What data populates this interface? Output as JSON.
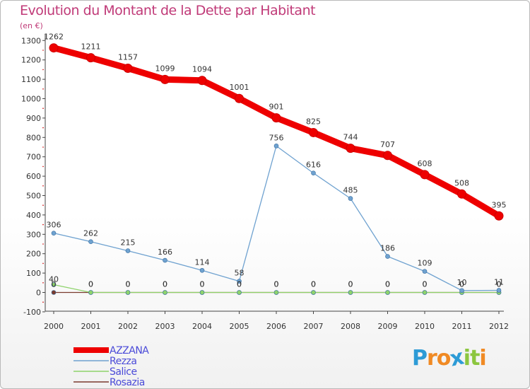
{
  "header": {
    "title": "Evolution du Montant de la Dette par Habitant",
    "subtitle": "(en €)"
  },
  "logo": {
    "letters": [
      "P",
      "r",
      "o",
      "x",
      "i",
      "t",
      "i"
    ],
    "colors": [
      "#2d9bd6",
      "#f08a24",
      "#f08a24",
      "#2d9bd6",
      "#8cc63f",
      "#8cc63f",
      "#f08a24"
    ]
  },
  "colors": {
    "title": "#c03a78",
    "legend_text": "#4a4ad8",
    "axis": "#333333",
    "grid_dots": "#cc0000"
  },
  "chart_data": {
    "type": "line",
    "x": [
      "2000",
      "2001",
      "2002",
      "2003",
      "2004",
      "2005",
      "2006",
      "2007",
      "2008",
      "2009",
      "2010",
      "2011",
      "2012"
    ],
    "yticks": [
      -100,
      0,
      100,
      200,
      300,
      400,
      500,
      600,
      700,
      800,
      900,
      1000,
      1100,
      1200,
      1300
    ],
    "ylim": [
      -100,
      1300
    ],
    "legend_position": "bottom-left",
    "series": [
      {
        "name": "AZZANA",
        "color": "#ee0000",
        "values": [
          1262,
          1211,
          1157,
          1099,
          1094,
          1001,
          901,
          825,
          744,
          707,
          608,
          508,
          395
        ],
        "labels": [
          "1262",
          "1211",
          "1157",
          "1099",
          "1094",
          "1001",
          "901",
          "825",
          "744",
          "707",
          "608",
          "508",
          "395"
        ]
      },
      {
        "name": "Rezza",
        "color": "#6fa2d0",
        "values": [
          306,
          262,
          215,
          166,
          114,
          58,
          756,
          616,
          485,
          186,
          109,
          10,
          11
        ],
        "labels": [
          "306",
          "262",
          "215",
          "166",
          "114",
          "58",
          "756",
          "616",
          "485",
          "186",
          "109",
          "10",
          "11"
        ]
      },
      {
        "name": "Salice",
        "color": "#8ed36b",
        "values": [
          40,
          0,
          0,
          0,
          0,
          0,
          0,
          0,
          0,
          0,
          0,
          0,
          0
        ],
        "labels": [
          "40",
          "0",
          "0",
          "0",
          "0",
          "0",
          "0",
          "0",
          "0",
          "0",
          "0",
          "0",
          "0"
        ]
      },
      {
        "name": "Rosazia",
        "color": "#7a3b2e",
        "values": [
          0,
          0,
          0,
          0,
          0,
          0,
          0,
          0,
          0,
          0,
          0,
          0,
          0
        ],
        "labels": [
          "0",
          "0",
          "0",
          "0",
          "0",
          "0",
          "0",
          "0",
          "0",
          "0",
          "0",
          "0",
          "0"
        ]
      }
    ]
  }
}
